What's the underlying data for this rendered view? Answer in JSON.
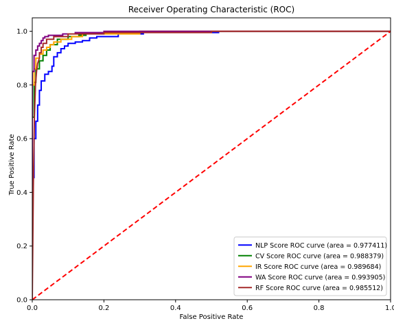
{
  "chart_data": {
    "type": "line",
    "title": "Receiver Operating Characteristic (ROC)",
    "xlabel": "False Positive Rate",
    "ylabel": "True Positive Rate",
    "xlim": [
      0.0,
      1.0
    ],
    "ylim": [
      0.0,
      1.05
    ],
    "xticks": [
      "0.0",
      "0.2",
      "0.4",
      "0.6",
      "0.8",
      "1.0"
    ],
    "yticks": [
      "0.0",
      "0.2",
      "0.4",
      "0.6",
      "0.8",
      "1.0"
    ],
    "legend_position": "lower-right",
    "grid": false,
    "series": [
      {
        "name": "NLP Score ROC curve (area = 0.977411)",
        "color": "#0000ff",
        "x": [
          0,
          0,
          0.005,
          0.005,
          0.01,
          0.01,
          0.015,
          0.015,
          0.02,
          0.02,
          0.025,
          0.025,
          0.035,
          0.035,
          0.045,
          0.045,
          0.055,
          0.055,
          0.06,
          0.06,
          0.07,
          0.07,
          0.08,
          0.08,
          0.09,
          0.09,
          0.1,
          0.1,
          0.12,
          0.12,
          0.14,
          0.14,
          0.16,
          0.16,
          0.18,
          0.18,
          0.24,
          0.24,
          0.31,
          0.31,
          0.52,
          0.52,
          0.77,
          0.77,
          1.0
        ],
        "y": [
          0,
          0.455,
          0.455,
          0.6,
          0.6,
          0.665,
          0.665,
          0.725,
          0.725,
          0.78,
          0.78,
          0.815,
          0.815,
          0.84,
          0.84,
          0.85,
          0.85,
          0.87,
          0.87,
          0.905,
          0.905,
          0.92,
          0.92,
          0.935,
          0.935,
          0.945,
          0.945,
          0.955,
          0.955,
          0.96,
          0.96,
          0.965,
          0.965,
          0.975,
          0.975,
          0.98,
          0.98,
          0.99,
          0.99,
          0.995,
          0.995,
          1.0,
          1.0,
          1.0,
          1.0
        ]
      },
      {
        "name": "CV Score ROC curve (area = 0.988379)",
        "color": "#008000",
        "x": [
          0,
          0,
          0.005,
          0.005,
          0.01,
          0.01,
          0.02,
          0.02,
          0.03,
          0.03,
          0.04,
          0.04,
          0.05,
          0.05,
          0.07,
          0.07,
          0.1,
          0.1,
          0.13,
          0.13,
          0.15,
          0.15,
          0.3,
          0.3,
          1.0
        ],
        "y": [
          0,
          0.68,
          0.68,
          0.81,
          0.81,
          0.86,
          0.86,
          0.89,
          0.89,
          0.91,
          0.91,
          0.93,
          0.93,
          0.95,
          0.95,
          0.97,
          0.97,
          0.98,
          0.98,
          0.985,
          0.985,
          0.995,
          0.995,
          1.0,
          1.0
        ]
      },
      {
        "name": "IR Score ROC curve (area = 0.989684)",
        "color": "#ffa500",
        "x": [
          0,
          0,
          0.005,
          0.005,
          0.01,
          0.01,
          0.02,
          0.02,
          0.03,
          0.03,
          0.04,
          0.04,
          0.05,
          0.05,
          0.06,
          0.06,
          0.08,
          0.08,
          0.11,
          0.11,
          0.14,
          0.14,
          0.3,
          0.3,
          1.0
        ],
        "y": [
          0,
          0.8,
          0.8,
          0.86,
          0.86,
          0.9,
          0.9,
          0.915,
          0.915,
          0.93,
          0.93,
          0.94,
          0.94,
          0.95,
          0.95,
          0.96,
          0.96,
          0.97,
          0.97,
          0.98,
          0.98,
          0.99,
          0.99,
          1.0,
          1.0
        ]
      },
      {
        "name": "WA Score ROC curve (area = 0.993905)",
        "color": "#800080",
        "x": [
          0,
          0,
          0.005,
          0.005,
          0.01,
          0.01,
          0.015,
          0.015,
          0.02,
          0.02,
          0.025,
          0.025,
          0.03,
          0.03,
          0.035,
          0.035,
          0.045,
          0.045,
          0.06,
          0.06,
          0.085,
          0.085,
          0.12,
          0.12,
          0.2,
          0.2,
          1.0
        ],
        "y": [
          0,
          0.85,
          0.85,
          0.91,
          0.91,
          0.93,
          0.93,
          0.945,
          0.945,
          0.955,
          0.955,
          0.965,
          0.965,
          0.975,
          0.975,
          0.98,
          0.98,
          0.985,
          0.985,
          0.985,
          0.985,
          0.99,
          0.99,
          0.995,
          0.995,
          1.0,
          1.0
        ]
      },
      {
        "name": "RF Score ROC curve (area = 0.985512)",
        "color": "#a52a2a",
        "x": [
          0,
          0.003,
          0.006,
          0.009,
          0.012,
          0.015,
          0.02,
          0.02,
          0.025,
          0.025,
          0.03,
          0.03,
          0.04,
          0.04,
          0.06,
          0.06,
          0.1,
          0.1,
          0.2,
          0.2,
          0.5,
          0.5,
          1.0
        ],
        "y": [
          0,
          0.42,
          0.68,
          0.8,
          0.85,
          0.88,
          0.9,
          0.92,
          0.92,
          0.94,
          0.94,
          0.955,
          0.955,
          0.97,
          0.97,
          0.98,
          0.98,
          0.99,
          0.99,
          0.995,
          0.995,
          1.0,
          1.0
        ]
      }
    ],
    "reference_line": {
      "color": "#ff0000",
      "style": "dashed",
      "x": [
        0,
        1
      ],
      "y": [
        0,
        1
      ]
    }
  }
}
